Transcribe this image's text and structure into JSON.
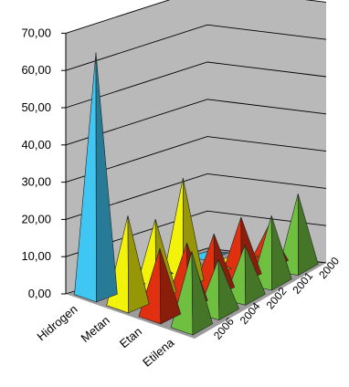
{
  "chart_data": {
    "type": "bar",
    "subtype": "3d-pyramid",
    "title": "",
    "xlabel": "",
    "ylabel": "",
    "ylim": [
      0,
      70
    ],
    "y_ticks": [
      "0,00",
      "10,00",
      "20,00",
      "30,00",
      "40,00",
      "50,00",
      "60,00",
      "70,00"
    ],
    "categories": [
      "Hidrogen",
      "Metan",
      "Etan",
      "Etilena"
    ],
    "depth_labels": [
      "2006",
      "2004",
      "2002",
      "2001",
      "2000"
    ],
    "grid": true,
    "colors": {
      "Hidrogen": "#3fc6f2",
      "Metan": "#f2f20a",
      "Etan": "#e03010",
      "Etilena": "#6fbf40",
      "wall": "#b9b9b9",
      "floor": "#9c9c9c"
    },
    "series": [
      {
        "name": "2000",
        "values": [
          1,
          2,
          10,
          20
        ]
      },
      {
        "name": "2001",
        "values": [
          2,
          3,
          16,
          18
        ]
      },
      {
        "name": "2002",
        "values": [
          4,
          28,
          15,
          14
        ]
      },
      {
        "name": "2004",
        "values": [
          4,
          20,
          16,
          14
        ]
      },
      {
        "name": "2006",
        "values": [
          65,
          24,
          18,
          20
        ]
      }
    ]
  }
}
